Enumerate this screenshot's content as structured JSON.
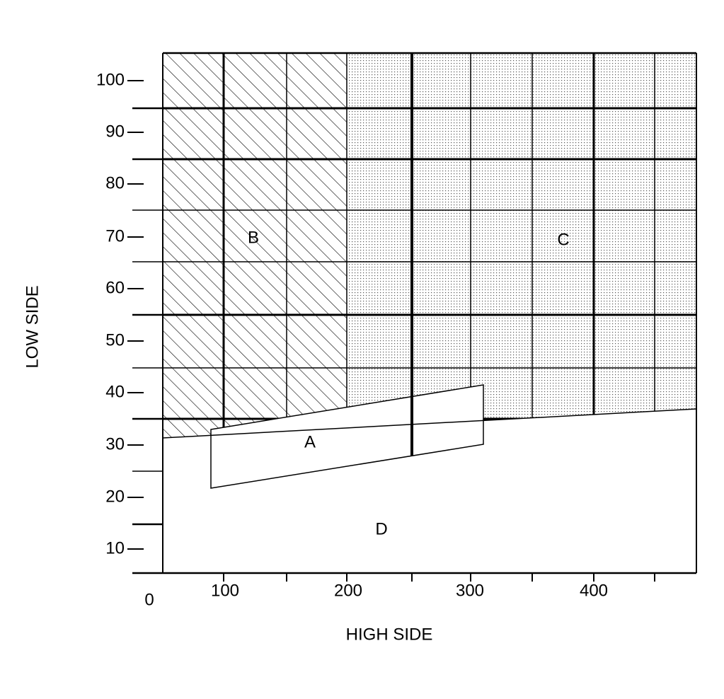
{
  "axes": {
    "y_label": "LOW SIDE",
    "x_label": "HIGH SIDE",
    "y_ticks": [
      "100",
      "90",
      "80",
      "70",
      "60",
      "50",
      "40",
      "30",
      "20",
      "10"
    ],
    "x_ticks": [
      "0",
      "100",
      "200",
      "300",
      "400"
    ]
  },
  "regions": {
    "a": "A",
    "b": "B",
    "c": "C",
    "d": "D"
  }
}
